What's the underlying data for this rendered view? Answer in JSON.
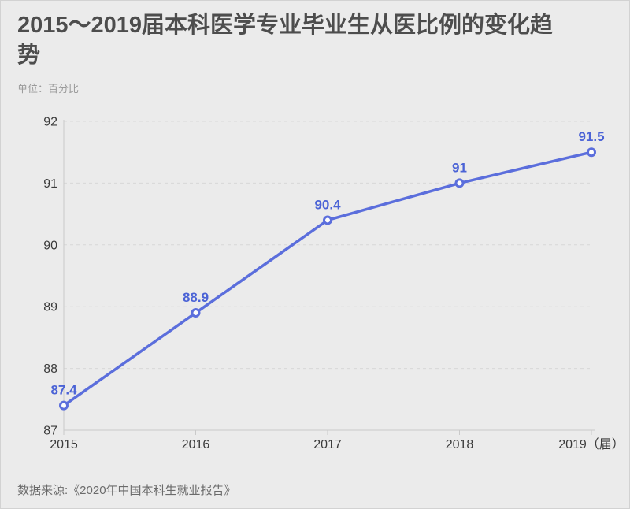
{
  "page": {
    "title": "2015～2019届本科医学专业毕业生从医比例的变化趋势",
    "subtitle": "单位：百分比",
    "source": "数据来源:《2020年中国本科生就业报告》"
  },
  "colors": {
    "background": "#ebebeb",
    "line": "#5B6EDC",
    "marker_fill": "#fdfdfd",
    "point_label": "#4B63D6",
    "grid": "#d8d8d8",
    "axis": "#c9c9c9",
    "axis_text": "#3a3a3a",
    "title_text": "#4d4d4d",
    "subtitle_text": "#9a9a9a",
    "source_text": "#6b6b6b"
  },
  "chart_data": {
    "type": "line",
    "title": "2015～2019届本科医学专业毕业生从医比例的变化趋势",
    "unit": "百分比",
    "x": [
      2015,
      2016,
      2017,
      2018,
      2019
    ],
    "categories": [
      "2015",
      "2016",
      "2017",
      "2018",
      "2019（届）"
    ],
    "series": [
      {
        "name": "本科医学专业毕业生从医比例",
        "values": [
          87.4,
          88.9,
          90.4,
          91,
          91.5
        ],
        "point_labels": [
          "87.4",
          "88.9",
          "90.4",
          "91",
          "91.5"
        ]
      }
    ],
    "ylim": [
      87,
      92
    ],
    "yticks": [
      87,
      88,
      89,
      90,
      91,
      92
    ],
    "grid": "horizontal-dashed",
    "legend": "none",
    "source": "数据来源:《2020年中国本科生就业报告》"
  }
}
